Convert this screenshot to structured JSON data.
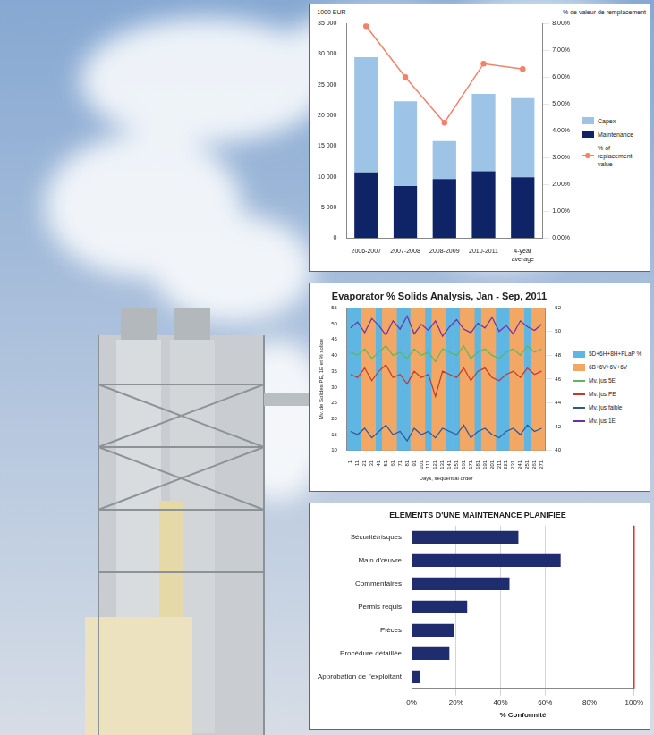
{
  "chart_data": [
    {
      "type": "bar",
      "stacked": true,
      "y_label": "- 1000 EUR -",
      "y2_label": "% de valeur de remplacement",
      "categories": [
        "2006-2007",
        "2007-2008",
        "2008-2009",
        "2010-2011",
        "4-year average"
      ],
      "series": [
        {
          "name": "Capex",
          "color": "#9dc3e6",
          "values": [
            18800,
            13800,
            6200,
            12600,
            12900
          ]
        },
        {
          "name": "Maintenance",
          "color": "#0f2466",
          "values": [
            10700,
            8500,
            9600,
            10900,
            9900
          ]
        },
        {
          "name": "% of replacement value",
          "type": "line",
          "marker": "circle",
          "color": "#f4826a",
          "axis": "y2",
          "values": [
            7.9,
            6.0,
            4.3,
            6.5,
            6.3
          ]
        }
      ],
      "ylim": [
        0,
        35000
      ],
      "yticks": [
        0,
        {
          "value": 5000,
          "label": "5 000"
        },
        {
          "value": 10000,
          "label": "10 000"
        },
        {
          "value": 15000,
          "label": "15 000"
        },
        {
          "value": 20000,
          "label": "20 000"
        },
        {
          "value": 25000,
          "label": "25 000"
        },
        {
          "value": 30000,
          "label": "30 000"
        },
        {
          "value": 35000,
          "label": "35 000"
        }
      ],
      "y2lim": [
        0,
        8
      ],
      "y2ticks": [
        {
          "value": 0,
          "label": "0.00%"
        },
        {
          "value": 1,
          "label": "1.00%"
        },
        {
          "value": 2,
          "label": "2.00%"
        },
        {
          "value": 3,
          "label": "3.00%"
        },
        {
          "value": 4,
          "label": "4.00%"
        },
        {
          "value": 5,
          "label": "5.00%"
        },
        {
          "value": 6,
          "label": "6.00%"
        },
        {
          "value": 7,
          "label": "7.00%"
        },
        {
          "value": 8,
          "label": "8.00%"
        }
      ],
      "legend": "right",
      "grid": false
    },
    {
      "type": "bar",
      "title": "Evaporator % Solids Analysis, Jan - Sep, 2011",
      "x_label": "Days, sequential order",
      "y_label": "Mv. de Solides PE, 1E et % solide",
      "categories": [
        "1",
        "11",
        "21",
        "31",
        "41",
        "51",
        "61",
        "71",
        "81",
        "91",
        "101",
        "111",
        "121",
        "131",
        "141",
        "151",
        "161",
        "171",
        "181",
        "191",
        "201",
        "211",
        "221",
        "231",
        "241",
        "251",
        "261",
        "271"
      ],
      "series": [
        {
          "name": "5D+6H+8H+FLaP %",
          "type": "bar",
          "color": "#5fb6e3",
          "values": [
            55,
            55,
            null,
            null,
            55,
            null,
            null,
            55,
            55,
            null,
            null,
            55,
            null,
            null,
            55,
            55,
            null,
            null,
            55,
            null,
            null,
            55,
            55,
            null,
            null,
            55,
            null,
            null
          ]
        },
        {
          "name": "6B+6V+6V+6V",
          "type": "bar",
          "color": "#f2a765",
          "values": [
            null,
            null,
            55,
            55,
            null,
            55,
            55,
            null,
            null,
            55,
            55,
            null,
            55,
            55,
            null,
            null,
            55,
            55,
            null,
            55,
            55,
            null,
            null,
            55,
            55,
            null,
            55,
            55
          ]
        },
        {
          "name": "Mv. jus 5E",
          "type": "line",
          "color": "#5cb85c",
          "values": [
            41,
            40,
            42,
            39,
            41,
            43,
            40,
            41,
            39,
            42,
            40,
            41,
            38,
            42,
            41,
            40,
            43,
            39,
            41,
            42,
            40,
            39,
            41,
            42,
            40,
            43,
            41,
            42
          ]
        },
        {
          "name": "Mv. jus PE",
          "type": "line",
          "color": "#c0392b",
          "values": [
            34,
            33,
            36,
            32,
            35,
            37,
            33,
            34,
            31,
            35,
            33,
            34,
            27,
            35,
            34,
            33,
            36,
            32,
            35,
            36,
            33,
            32,
            34,
            35,
            33,
            36,
            34,
            35
          ]
        },
        {
          "name": "Mv. jus faible",
          "type": "line",
          "color": "#2f5597",
          "values": [
            16,
            15,
            17,
            14,
            16,
            18,
            15,
            16,
            13,
            17,
            15,
            16,
            14,
            17,
            16,
            15,
            18,
            14,
            16,
            17,
            15,
            14,
            16,
            17,
            15,
            18,
            16,
            17
          ]
        },
        {
          "name": "Mv. jus 1E",
          "type": "line",
          "color": "#7030a0",
          "axis": "y2",
          "values": [
            50.3,
            50.8,
            49.9,
            51.1,
            50.5,
            49.7,
            50.9,
            50.2,
            51.3,
            49.8,
            50.6,
            50.1,
            50.9,
            49.6,
            50.4,
            51.0,
            50.2,
            49.9,
            50.7,
            50.3,
            51.2,
            50.0,
            50.5,
            49.8,
            50.9,
            50.4,
            50.1,
            50.6
          ]
        }
      ],
      "ylim": [
        10,
        55
      ],
      "yticks": [
        10,
        15,
        20,
        25,
        30,
        35,
        40,
        45,
        50,
        55
      ],
      "y2lim": [
        40,
        52
      ],
      "y2ticks": [
        40,
        42,
        44,
        46,
        48,
        50,
        52
      ],
      "legend": "right",
      "grid": false
    },
    {
      "type": "bar",
      "orientation": "horizontal",
      "title": "ÉLEMENTS D'UNE MAINTENANCE PLANIFIÉE",
      "x_label": "% Conformité",
      "categories": [
        "Sécurité/risques",
        "Main d'œuvre",
        "Commentaires",
        "Permis requis",
        "Pièces",
        "Procédure détaillée",
        "Approbation de l'exploitant"
      ],
      "values": [
        48,
        67,
        44,
        25,
        19,
        17,
        4
      ],
      "color": "#1f2d6e",
      "xlim": [
        0,
        100
      ],
      "xticks": [
        {
          "value": 0,
          "label": "0%"
        },
        {
          "value": 20,
          "label": "20%"
        },
        {
          "value": 40,
          "label": "40%"
        },
        {
          "value": 60,
          "label": "60%"
        },
        {
          "value": 80,
          "label": "80%"
        },
        {
          "value": 100,
          "label": "100%"
        }
      ],
      "target": 100,
      "grid": true
    }
  ]
}
